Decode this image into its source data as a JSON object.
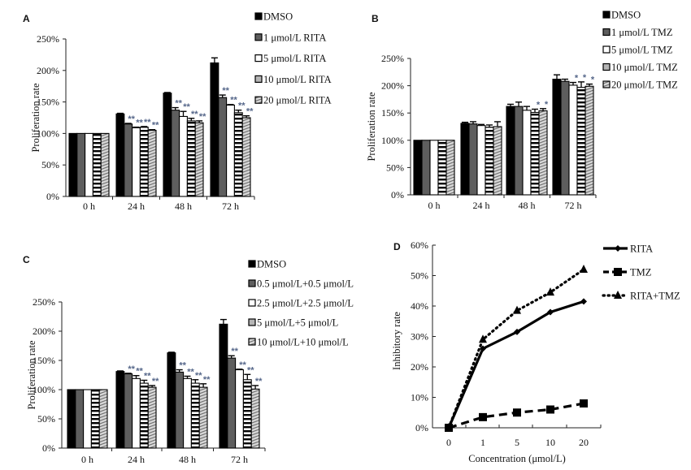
{
  "figure": {
    "colors": {
      "dmso": "#000000",
      "s1": "#5e5e5e",
      "s2": "#ffffff",
      "s3": "#b5b5b5",
      "s4": "#cfcfcf",
      "significance": "#56678a"
    }
  },
  "chart_data": [
    {
      "panel": "A",
      "type": "bar",
      "title": "",
      "xlabel": "",
      "ylabel": "Proliferation rate",
      "ylim": [
        0,
        250
      ],
      "yticks": [
        "0%",
        "50%",
        "100%",
        "150%",
        "200%",
        "250%"
      ],
      "categories": [
        "0 h",
        "24 h",
        "48 h",
        "72 h"
      ],
      "legend_position": "top-right",
      "grid": false,
      "series": [
        {
          "name": "DMSO",
          "pattern": "solid-black",
          "values": [
            100,
            131,
            164,
            212
          ],
          "errors": [
            0,
            1,
            1,
            8
          ],
          "sig": [
            "",
            "",
            "",
            ""
          ]
        },
        {
          "name": "1 μmol/L RITA",
          "pattern": "solid-darkgray",
          "values": [
            100,
            115,
            137,
            157
          ],
          "errors": [
            0,
            1,
            4,
            4
          ],
          "sig": [
            "",
            "**",
            "**",
            "**"
          ]
        },
        {
          "name": "5 μmol/L RITA",
          "pattern": "white",
          "values": [
            100,
            109,
            127,
            145
          ],
          "errors": [
            0,
            1,
            8,
            1
          ],
          "sig": [
            "",
            "**",
            "**",
            "**"
          ]
        },
        {
          "name": "10 μmol/L RITA",
          "pattern": "horizontal-stripes",
          "values": [
            100,
            110,
            120,
            133
          ],
          "errors": [
            0,
            1,
            4,
            4
          ],
          "sig": [
            "",
            "**",
            "**",
            "**"
          ]
        },
        {
          "name": "20 μmol/L RITA",
          "pattern": "diagonal-hatch",
          "values": [
            100,
            105,
            117,
            125
          ],
          "errors": [
            0,
            1,
            3,
            3
          ],
          "sig": [
            "",
            "**",
            "**",
            "**"
          ]
        }
      ]
    },
    {
      "panel": "B",
      "type": "bar",
      "title": "",
      "xlabel": "",
      "ylabel": "Proliferation rate",
      "ylim": [
        0,
        250
      ],
      "yticks": [
        "0%",
        "50%",
        "100%",
        "150%",
        "200%",
        "250%"
      ],
      "categories": [
        "0 h",
        "24 h",
        "48 h",
        "72 h"
      ],
      "legend_position": "top-right",
      "grid": false,
      "series": [
        {
          "name": "DMSO",
          "pattern": "solid-black",
          "values": [
            100,
            131,
            162,
            212
          ],
          "errors": [
            0,
            2,
            4,
            8
          ],
          "sig": [
            "",
            "",
            "",
            ""
          ]
        },
        {
          "name": "1 μmol/L TMZ",
          "pattern": "solid-darkgray",
          "values": [
            100,
            130,
            162,
            208
          ],
          "errors": [
            0,
            4,
            8,
            4
          ],
          "sig": [
            "",
            "",
            "",
            ""
          ]
        },
        {
          "name": "5 μmol/L TMZ",
          "pattern": "white",
          "values": [
            100,
            127,
            155,
            201
          ],
          "errors": [
            0,
            2,
            7,
            5
          ],
          "sig": [
            "",
            "",
            "",
            "*"
          ]
        },
        {
          "name": "10 μmol/L TMZ",
          "pattern": "horizontal-stripes",
          "values": [
            100,
            124,
            151,
            197
          ],
          "errors": [
            0,
            4,
            6,
            10
          ],
          "sig": [
            "",
            "",
            "*",
            "*"
          ]
        },
        {
          "name": "20 μmol/L TMZ",
          "pattern": "diagonal-hatch",
          "values": [
            100,
            125,
            154,
            199
          ],
          "errors": [
            0,
            9,
            4,
            4
          ],
          "sig": [
            "",
            "",
            "*",
            "*"
          ]
        }
      ]
    },
    {
      "panel": "C",
      "type": "bar",
      "title": "",
      "xlabel": "",
      "ylabel": "Proliferation rate",
      "ylim": [
        0,
        250
      ],
      "yticks": [
        "0%",
        "50%",
        "100%",
        "150%",
        "200%",
        "250%"
      ],
      "categories": [
        "0 h",
        "24 h",
        "48 h",
        "72 h"
      ],
      "legend_position": "top-right",
      "grid": false,
      "series": [
        {
          "name": "DMSO",
          "pattern": "solid-black",
          "values": [
            100,
            131,
            163,
            212
          ],
          "errors": [
            0,
            1,
            1,
            8
          ],
          "sig": [
            "",
            "",
            "",
            ""
          ]
        },
        {
          "name": "0.5 μmol/L+0.5 μmol/L",
          "pattern": "solid-darkgray",
          "values": [
            100,
            127,
            130,
            154
          ],
          "errors": [
            0,
            1,
            4,
            4
          ],
          "sig": [
            "",
            "**",
            "**",
            "**"
          ]
        },
        {
          "name": "2.5 μmol/L+2.5 μmol/L",
          "pattern": "white",
          "values": [
            100,
            119,
            119,
            134
          ],
          "errors": [
            0,
            5,
            4,
            1
          ],
          "sig": [
            "",
            "**",
            "**",
            "**"
          ]
        },
        {
          "name": "5 μmol/L+5 μmol/L",
          "pattern": "horizontal-stripes",
          "values": [
            100,
            111,
            111,
            117
          ],
          "errors": [
            0,
            5,
            6,
            9
          ],
          "sig": [
            "",
            "**",
            "**",
            "**"
          ]
        },
        {
          "name": "10 μmol/L+10 μmol/L",
          "pattern": "diagonal-hatch",
          "values": [
            100,
            104,
            104,
            101
          ],
          "errors": [
            0,
            3,
            6,
            6
          ],
          "sig": [
            "",
            "**",
            "**",
            "**"
          ]
        }
      ]
    },
    {
      "panel": "D",
      "type": "line",
      "title": "",
      "xlabel": "Concentration (μmol/L)",
      "ylabel": "Inhibitory rate",
      "ylim": [
        0,
        60
      ],
      "yticks": [
        "0%",
        "10%",
        "20%",
        "30%",
        "40%",
        "50%",
        "60%"
      ],
      "x": [
        "0",
        "1",
        "5",
        "10",
        "20"
      ],
      "legend_position": "top-right",
      "grid": false,
      "series": [
        {
          "name": "RITA",
          "style": "solid",
          "marker": "diamond",
          "values": [
            0,
            26,
            31.5,
            38,
            41.5
          ]
        },
        {
          "name": "TMZ",
          "style": "dashed",
          "marker": "square",
          "values": [
            0,
            3.5,
            5,
            6,
            8
          ]
        },
        {
          "name": "RITA+TMZ",
          "style": "dotted",
          "marker": "triangle",
          "values": [
            0,
            29,
            38.5,
            44.5,
            52
          ]
        }
      ]
    }
  ]
}
